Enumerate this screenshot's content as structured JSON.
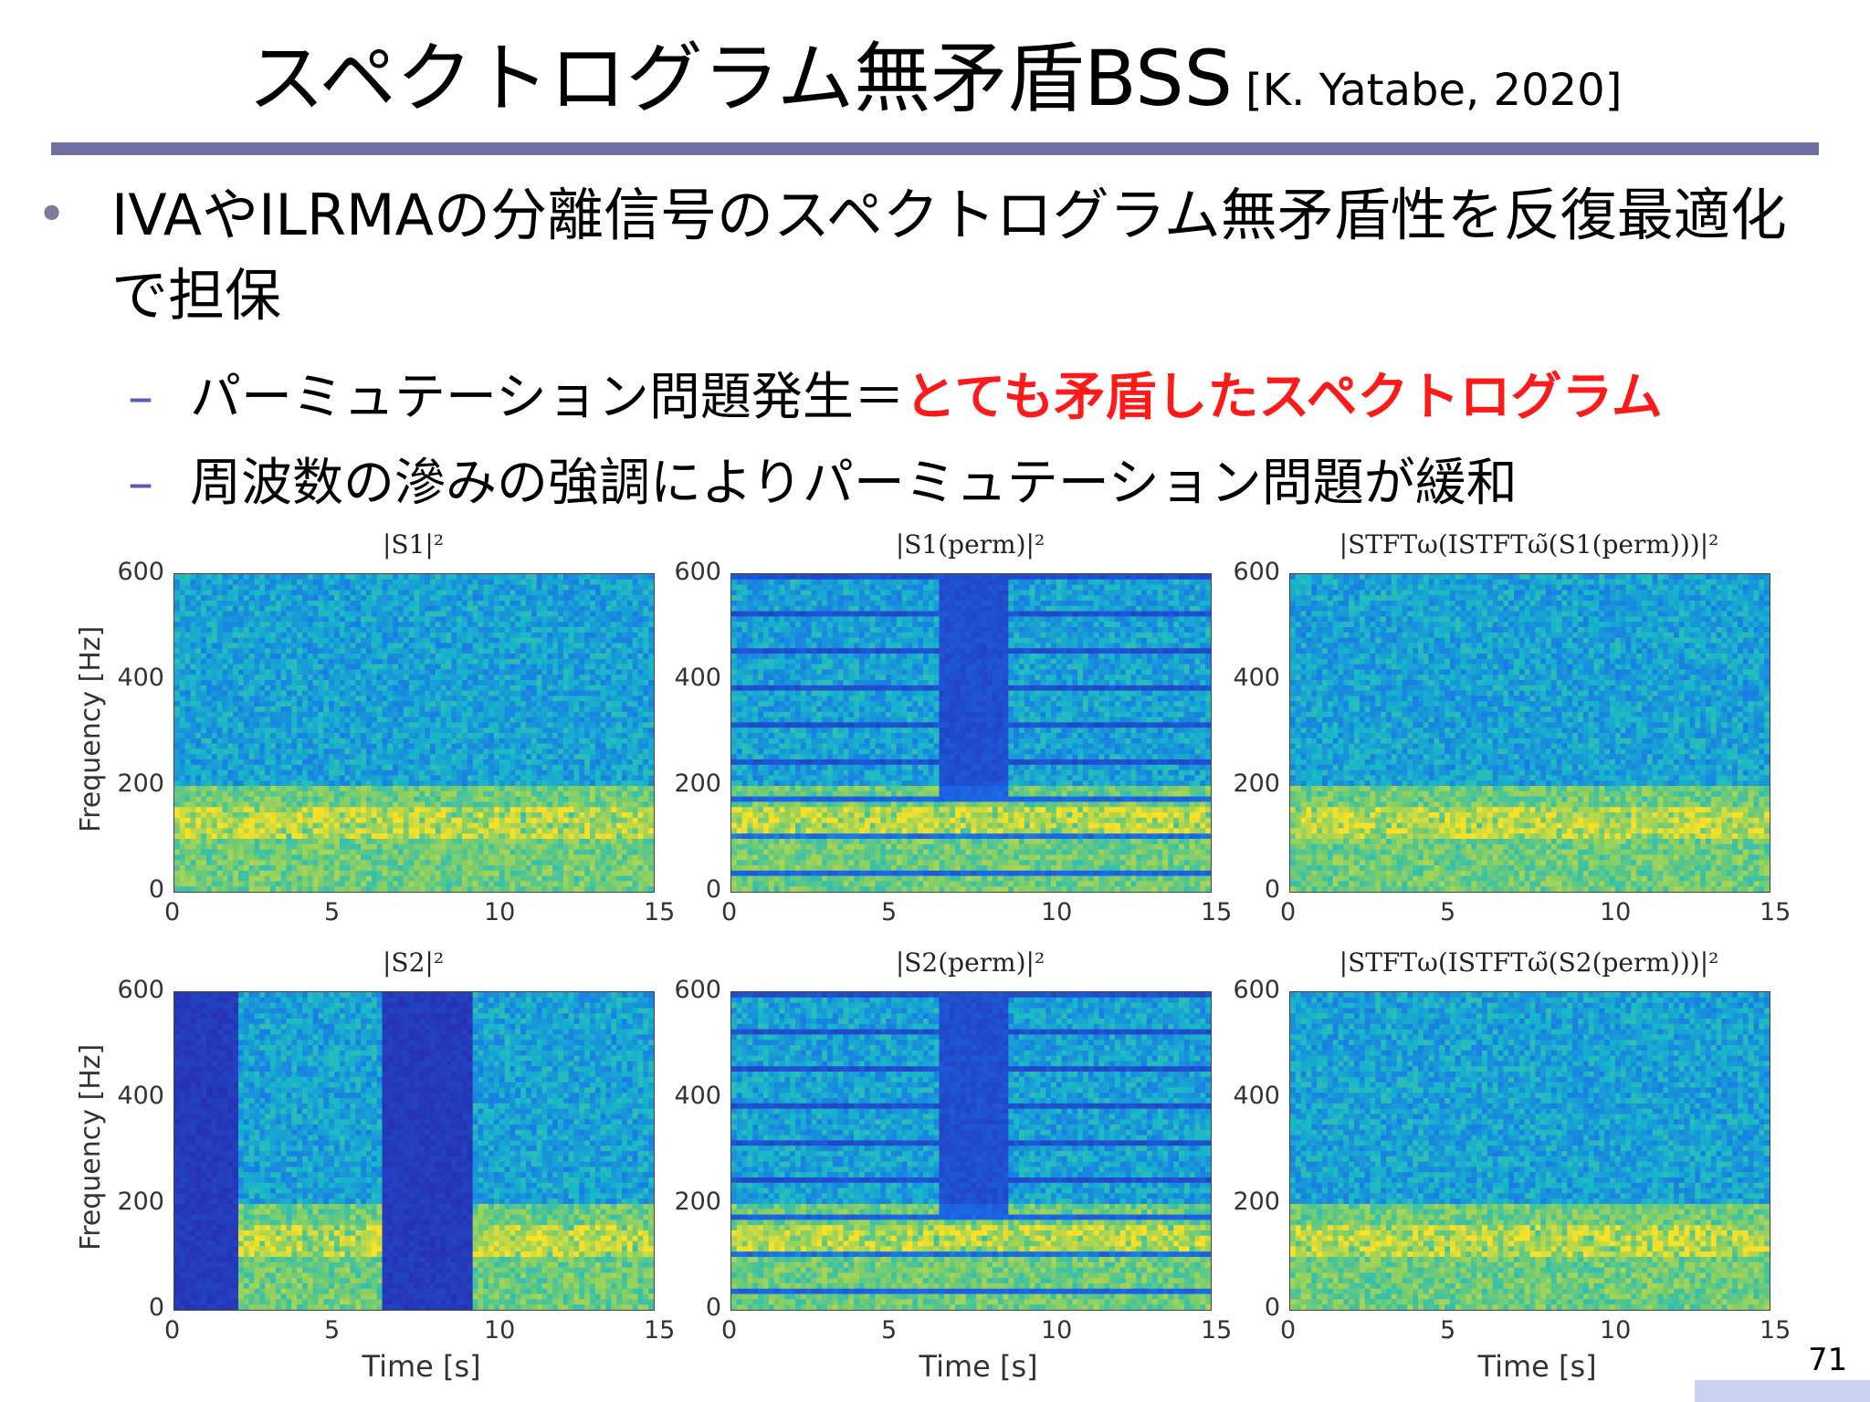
{
  "slide": {
    "title": "スペクトログラム無矛盾BSS",
    "citation": "[K. Yatabe, 2020]",
    "bullet": "IVAやILRMAの分離信号のスペクトログラム無矛盾性を反復最適化で担保",
    "sub1_prefix": "パーミュテーション問題発生＝",
    "sub1_red": "とても矛盾したスペクトログラム",
    "sub2": "周波数の滲みの強調によりパーミュテーション問題が緩和",
    "page_number": "71"
  },
  "chart_data": [
    {
      "type": "heatmap",
      "title": "|S1|²",
      "ylabel": "Frequency [Hz]",
      "xlabel": "",
      "xlim": [
        0,
        15
      ],
      "ylim": [
        0,
        600
      ],
      "xticks": [
        "0",
        "5",
        "10",
        "15"
      ],
      "yticks": [
        "0",
        "200",
        "400",
        "600"
      ]
    },
    {
      "type": "heatmap",
      "title": "|S1(perm)|²",
      "ylabel": "",
      "xlabel": "",
      "xlim": [
        0,
        15
      ],
      "ylim": [
        0,
        600
      ],
      "xticks": [
        "0",
        "5",
        "10",
        "15"
      ],
      "yticks": [
        "0",
        "200",
        "400",
        "600"
      ]
    },
    {
      "type": "heatmap",
      "title": "|STFTω(ISTFTω̃(S1(perm)))|²",
      "ylabel": "",
      "xlabel": "",
      "xlim": [
        0,
        15
      ],
      "ylim": [
        0,
        600
      ],
      "xticks": [
        "0",
        "5",
        "10",
        "15"
      ],
      "yticks": [
        "0",
        "200",
        "400",
        "600"
      ]
    },
    {
      "type": "heatmap",
      "title": "|S2|²",
      "ylabel": "Frequency [Hz]",
      "xlabel": "Time [s]",
      "xlim": [
        0,
        15
      ],
      "ylim": [
        0,
        600
      ],
      "xticks": [
        "0",
        "5",
        "10",
        "15"
      ],
      "yticks": [
        "0",
        "200",
        "400",
        "600"
      ]
    },
    {
      "type": "heatmap",
      "title": "|S2(perm)|²",
      "ylabel": "",
      "xlabel": "Time [s]",
      "xlim": [
        0,
        15
      ],
      "ylim": [
        0,
        600
      ],
      "xticks": [
        "0",
        "5",
        "10",
        "15"
      ],
      "yticks": [
        "0",
        "200",
        "400",
        "600"
      ]
    },
    {
      "type": "heatmap",
      "title": "|STFTω(ISTFTω̃(S2(perm)))|²",
      "ylabel": "",
      "xlabel": "Time [s]",
      "xlim": [
        0,
        15
      ],
      "ylim": [
        0,
        600
      ],
      "xticks": [
        "0",
        "5",
        "10",
        "15"
      ],
      "yticks": [
        "0",
        "200",
        "400",
        "600"
      ]
    }
  ],
  "colors": {
    "rule": "#6f6fa2",
    "red": "#ff1a1a",
    "dash": "#5b5bb0"
  }
}
